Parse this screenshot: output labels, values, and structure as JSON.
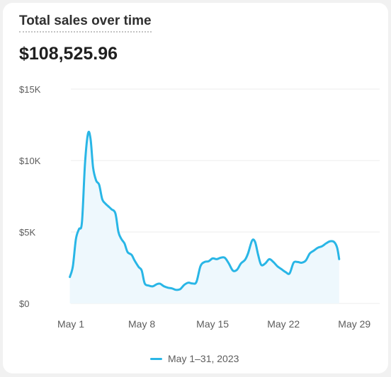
{
  "card": {
    "title": "Total sales over time",
    "total": "$108,525.96"
  },
  "colors": {
    "line": "#29b6e6",
    "area": "#eef8fd",
    "grid": "#ececec",
    "axis_text": "#5c5c5c"
  },
  "legend": {
    "label": "May 1–31, 2023"
  },
  "chart_data": {
    "type": "line",
    "title": "Total sales over time",
    "xlabel": "",
    "ylabel": "",
    "grid": "horizontal",
    "legend_position": "bottom-center",
    "xlim": [
      1,
      31.5
    ],
    "ylim": [
      0,
      15000
    ],
    "y_ticks": [
      0,
      5000,
      10000,
      15000
    ],
    "y_tick_labels": [
      "$0",
      "$5K",
      "$10K",
      "$15K"
    ],
    "x_ticks": [
      1,
      8,
      15,
      22,
      29
    ],
    "x_tick_labels": [
      "May 1",
      "May 8",
      "May 15",
      "May 22",
      "May 29"
    ],
    "series": [
      {
        "name": "May 1–31, 2023",
        "points": [
          [
            0.9,
            1850
          ],
          [
            1.2,
            2600
          ],
          [
            1.5,
            4500
          ],
          [
            1.8,
            5200
          ],
          [
            2.1,
            5700
          ],
          [
            2.4,
            9800
          ],
          [
            2.7,
            11900
          ],
          [
            2.95,
            11500
          ],
          [
            3.2,
            9500
          ],
          [
            3.5,
            8600
          ],
          [
            3.8,
            8300
          ],
          [
            4.1,
            7300
          ],
          [
            4.4,
            7000
          ],
          [
            4.7,
            6800
          ],
          [
            5.0,
            6600
          ],
          [
            5.4,
            6300
          ],
          [
            5.7,
            5000
          ],
          [
            6.0,
            4500
          ],
          [
            6.3,
            4200
          ],
          [
            6.6,
            3600
          ],
          [
            7.0,
            3400
          ],
          [
            7.3,
            3000
          ],
          [
            7.7,
            2550
          ],
          [
            8.0,
            2300
          ],
          [
            8.3,
            1400
          ],
          [
            8.7,
            1250
          ],
          [
            9.1,
            1200
          ],
          [
            9.5,
            1350
          ],
          [
            9.8,
            1380
          ],
          [
            10.2,
            1200
          ],
          [
            10.6,
            1100
          ],
          [
            11.0,
            1050
          ],
          [
            11.4,
            950
          ],
          [
            11.8,
            1000
          ],
          [
            12.2,
            1300
          ],
          [
            12.6,
            1450
          ],
          [
            13.0,
            1400
          ],
          [
            13.4,
            1500
          ],
          [
            13.8,
            2600
          ],
          [
            14.2,
            2900
          ],
          [
            14.6,
            2950
          ],
          [
            15.0,
            3150
          ],
          [
            15.4,
            3100
          ],
          [
            15.8,
            3200
          ],
          [
            16.2,
            3200
          ],
          [
            16.6,
            2800
          ],
          [
            17.0,
            2300
          ],
          [
            17.4,
            2350
          ],
          [
            17.8,
            2800
          ],
          [
            18.2,
            3050
          ],
          [
            18.5,
            3500
          ],
          [
            18.9,
            4400
          ],
          [
            19.2,
            4300
          ],
          [
            19.5,
            3400
          ],
          [
            19.8,
            2700
          ],
          [
            20.2,
            2800
          ],
          [
            20.6,
            3100
          ],
          [
            21.0,
            2900
          ],
          [
            21.4,
            2600
          ],
          [
            21.8,
            2400
          ],
          [
            22.2,
            2200
          ],
          [
            22.6,
            2100
          ],
          [
            23.0,
            2850
          ],
          [
            23.4,
            2900
          ],
          [
            23.8,
            2850
          ],
          [
            24.2,
            3000
          ],
          [
            24.6,
            3500
          ],
          [
            25.0,
            3700
          ],
          [
            25.4,
            3900
          ],
          [
            25.8,
            4000
          ],
          [
            26.2,
            4200
          ],
          [
            26.6,
            4350
          ],
          [
            27.0,
            4300
          ],
          [
            27.3,
            3900
          ],
          [
            27.5,
            3100
          ]
        ]
      }
    ]
  }
}
